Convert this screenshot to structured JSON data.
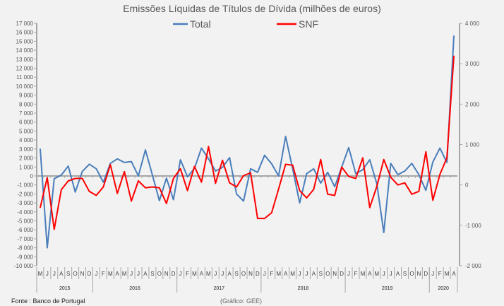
{
  "chart_data": {
    "type": "line",
    "title": "Emissões Líquidas de Títulos de Dívida (milhões de euros)",
    "months": [
      "M",
      "J",
      "J",
      "A",
      "S",
      "O",
      "N",
      "D",
      "J",
      "F",
      "M",
      "A",
      "M",
      "J",
      "J",
      "A",
      "S",
      "O",
      "N",
      "D",
      "J",
      "F",
      "M",
      "A",
      "M",
      "J",
      "J",
      "A",
      "S",
      "O",
      "N",
      "D",
      "J",
      "F",
      "M",
      "A",
      "M",
      "J",
      "J",
      "A",
      "S",
      "O",
      "N",
      "D",
      "J",
      "F",
      "M",
      "A",
      "M",
      "J",
      "J",
      "A",
      "S",
      "O",
      "N",
      "D",
      "J",
      "F",
      "M",
      "A"
    ],
    "years": [
      {
        "label": "2015",
        "start": 0,
        "end": 8
      },
      {
        "label": "2016",
        "start": 8,
        "end": 20
      },
      {
        "label": "2017",
        "start": 20,
        "end": 32
      },
      {
        "label": "2018",
        "start": 32,
        "end": 44
      },
      {
        "label": "2019",
        "start": 44,
        "end": 56
      },
      {
        "label": "2020",
        "start": 56,
        "end": 60
      }
    ],
    "left_axis": {
      "ylim": [
        -10000,
        17000
      ],
      "step": 1000
    },
    "right_axis": {
      "ylim": [
        -2000,
        4000
      ],
      "step": 1000
    },
    "grid": false,
    "legend_placement": "top",
    "series": [
      {
        "name": "Total",
        "axis": "left",
        "color": "#4a7ebb",
        "values": [
          3000,
          -8000,
          -300,
          100,
          1100,
          -1800,
          500,
          1300,
          800,
          -700,
          1400,
          1900,
          1500,
          1600,
          0,
          2900,
          100,
          -2750,
          -250,
          -2650,
          1800,
          -100,
          850,
          3100,
          1900,
          550,
          950,
          2050,
          -2000,
          -2800,
          800,
          400,
          2300,
          1350,
          0,
          4400,
          800,
          -3000,
          250,
          800,
          -800,
          400,
          -1200,
          1000,
          3150,
          250,
          700,
          1800,
          -850,
          -6300,
          1400,
          150,
          550,
          1400,
          150,
          -1600,
          1550,
          3100,
          1500,
          15600
        ]
      },
      {
        "name": "SNF",
        "axis": "right",
        "color": "#ff0000",
        "values": [
          -560,
          180,
          -1100,
          -120,
          100,
          160,
          160,
          -160,
          -260,
          -50,
          500,
          -210,
          330,
          -400,
          100,
          -70,
          -50,
          -70,
          -460,
          160,
          400,
          -140,
          460,
          70,
          950,
          40,
          610,
          50,
          -50,
          230,
          300,
          -830,
          -830,
          -690,
          -100,
          510,
          490,
          -140,
          -320,
          -110,
          630,
          -230,
          -260,
          440,
          210,
          160,
          670,
          -560,
          -40,
          630,
          190,
          0,
          50,
          -230,
          -160,
          820,
          -380,
          260,
          670,
          3190
        ]
      }
    ],
    "source": "Fonte : Banco de Portugal",
    "credit": "(Gráfico: GEE)"
  }
}
